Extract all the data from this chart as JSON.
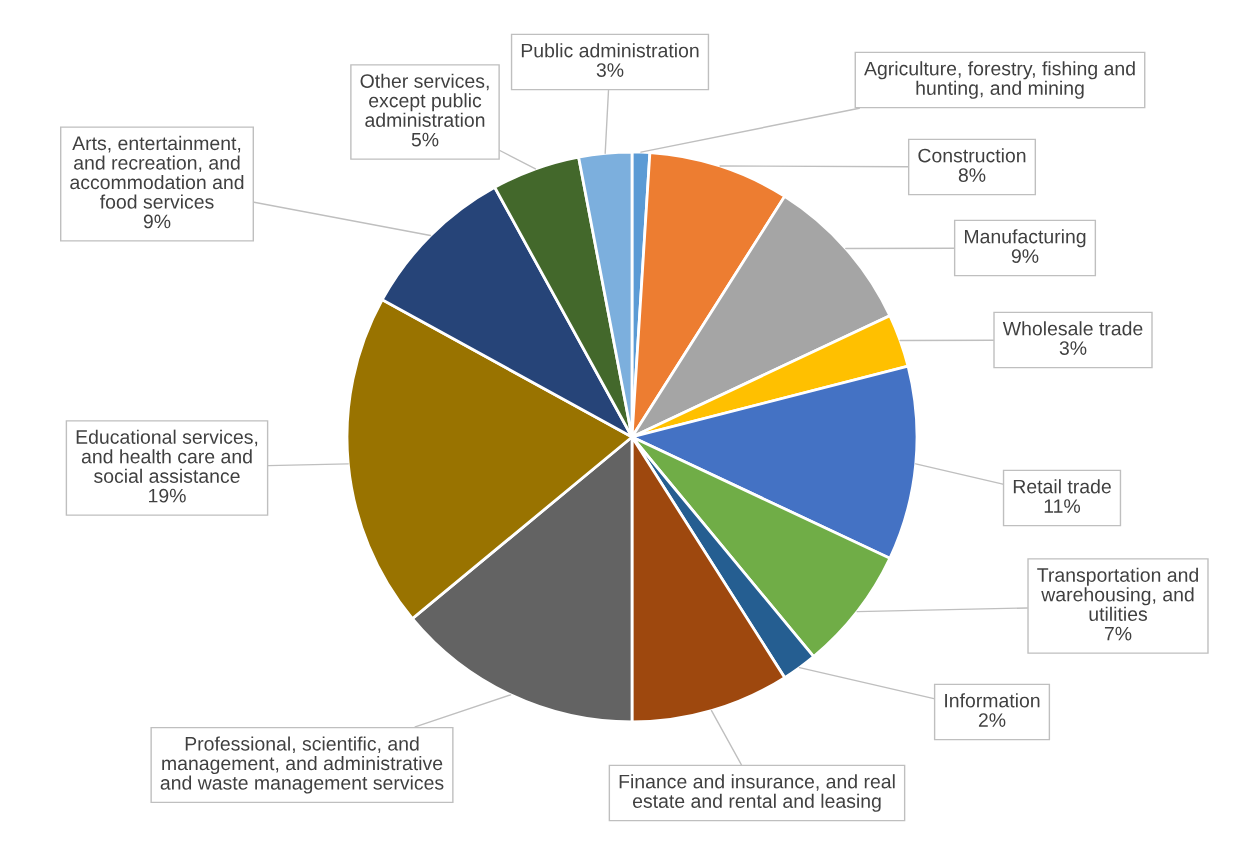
{
  "chart_data": {
    "type": "pie",
    "categories": [
      "Agriculture, forestry, fishing and hunting, and mining",
      "Construction",
      "Manufacturing",
      "Wholesale trade",
      "Retail trade",
      "Transportation and warehousing, and utilities",
      "Information",
      "Finance and insurance, and real estate and rental and leasing",
      "Professional, scientific, and management, and administrative and waste management services",
      "Educational services, and health care and social assistance",
      "Arts, entertainment, and recreation, and accommodation and food services",
      "Other services, except public administration",
      "Public administration"
    ],
    "values": [
      1,
      8,
      9,
      3,
      11,
      7,
      2,
      9,
      14,
      19,
      9,
      5,
      3
    ],
    "value_labels": [
      null,
      "8%",
      "9%",
      "3%",
      "11%",
      "7%",
      "2%",
      null,
      null,
      "19%",
      "9%",
      "5%",
      "3%"
    ],
    "colors": [
      "#5b9bd5",
      "#ed7d31",
      "#a5a5a5",
      "#ffc000",
      "#4472c4",
      "#70ad47",
      "#255e91",
      "#9e480e",
      "#636363",
      "#997300",
      "#264478",
      "#43682b",
      "#7cafdd"
    ],
    "legend": false
  }
}
